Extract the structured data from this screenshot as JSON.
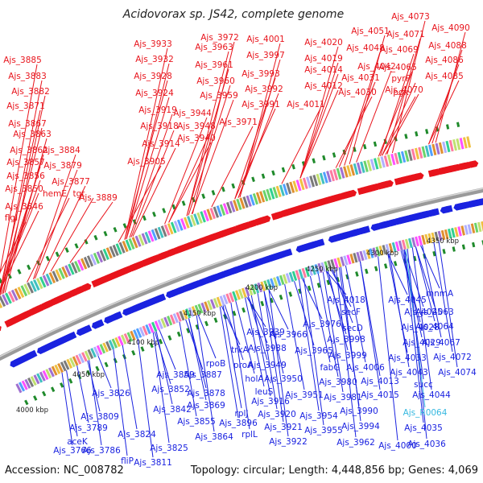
{
  "title": "Acidovorax sp. JS42, complete genome",
  "footer": {
    "accession": "Accession: NC_008782",
    "summary": "Topology: circular; Length: 4,448,856 bp; Genes: 4,069"
  },
  "colors": {
    "forward": "#e8141c",
    "reverse": "#1a22e0",
    "rna": "#36b8e0",
    "backbone": "#8a8a8a",
    "tick": "#1f8a2b"
  },
  "scale_ticks": [
    "4000 kbp",
    "4050 kbp",
    "4100 kbp",
    "4150 kbp",
    "4200 kbp",
    "4250 kbp",
    "4300 kbp",
    "4350 kbp"
  ],
  "forward_labels": [
    "Ajs_3885",
    "Ajs_3883",
    "Ajs_3882",
    "Ajs_3871",
    "Ajs_3867",
    "Ajs_3863",
    "Ajs_3862",
    "Ajs_3884",
    "Ajs_3857",
    "Ajs_3879",
    "Ajs_3856",
    "Ajs_3877",
    "Ajs_3850",
    "hemE",
    "tgt",
    "Ajs_3889",
    "Ajs_3846",
    "flgI",
    "Ajs_3933",
    "Ajs_3932",
    "Ajs_3928",
    "Ajs_3924",
    "Ajs_3919",
    "Ajs_3918",
    "Ajs_3914",
    "Ajs_3905",
    "Ajs_3944",
    "Ajs_3948",
    "Ajs_3940",
    "Ajs_3972",
    "Ajs_3963",
    "Ajs_3961",
    "Ajs_3960",
    "Ajs_3959",
    "Ajs_3971",
    "Ajs_4001",
    "Ajs_3997",
    "Ajs_3993",
    "Ajs_3992",
    "Ajs_3991",
    "Ajs_4020",
    "Ajs_4019",
    "Ajs_4014",
    "Ajs_4012",
    "Ajs_4011",
    "Ajs_4051",
    "Ajs_4048",
    "Ajs_4031",
    "Ajs_4030",
    "Ajs_4042",
    "pyrF",
    "pgk",
    "Ajs_4073",
    "Ajs_4071",
    "Ajs_4069",
    "Ajs_4065",
    "Ajs_4070",
    "Ajs_4090",
    "Ajs_4088",
    "Ajs_4086",
    "Ajs_4085"
  ],
  "reverse_labels": [
    "mnmA",
    "Ajs_4018",
    "Ajs_4045",
    "secF",
    "Ajs_4025",
    "Ajs_4063",
    "Ajs_3976",
    "secD",
    "Ajs_4028",
    "Ajs_4064",
    "Ajs_3939",
    "Ajs_3966",
    "Ajs_3998",
    "Ajs_4029",
    "Ajs_4067",
    "trkA",
    "Ajs_3938",
    "Ajs_3965",
    "Ajs_3999",
    "Ajs_4033",
    "Ajs_4072",
    "rpoB",
    "proA",
    "Ajs_3949",
    "fabG",
    "Ajs_4006",
    "Ajs_4043",
    "Ajs_4074",
    "Ajs_3887",
    "Ajs_3859",
    "holA",
    "Ajs_3950",
    "Ajs_3980",
    "Ajs_4013",
    "succ",
    "Ajs_3852",
    "Ajs_3878",
    "leuS",
    "Ajs_3951",
    "Ajs_3981",
    "Ajs_4015",
    "Ajs_4044",
    "Ajs_3826",
    "Ajs_3842",
    "Ajs_3869",
    "rplJ",
    "Ajs_3916",
    "Ajs_3990",
    "Ajs_R0064",
    "Ajs_3809",
    "Ajs_3855",
    "Ajs_3896",
    "Ajs_3920",
    "Ajs_3954",
    "Ajs_3994",
    "Ajs_4035",
    "Ajs_3789",
    "Ajs_3824",
    "Ajs_3864",
    "rplL",
    "Ajs_3921",
    "Ajs_3955",
    "Ajs_3962",
    "Ajs_4000",
    "Ajs_4036",
    "aceK",
    "Ajs_3766",
    "Ajs_3786",
    "Ajs_3825",
    "Ajs_3922",
    "fliP",
    "Ajs_3811"
  ]
}
